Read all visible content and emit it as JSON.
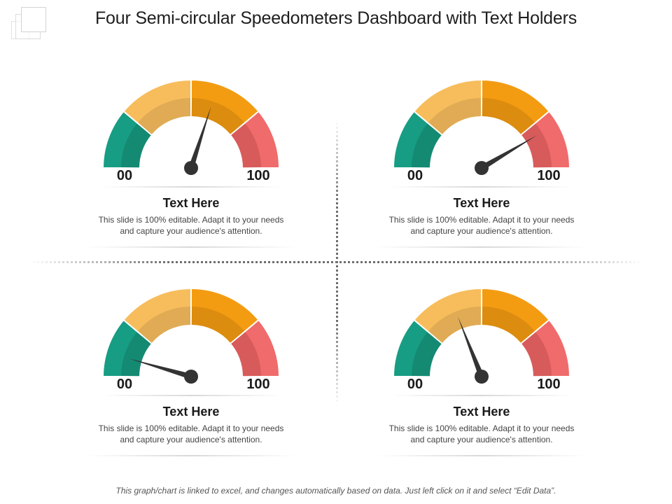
{
  "title": "Four Semi-circular Speedometers Dashboard with Text Holders",
  "footer": "This graph/chart is linked to excel, and changes automatically  based on data.  Just left click on it and select “Edit Data”.",
  "colors": {
    "teal": "#179d83",
    "teal_inner": "#148a72",
    "yellow": "#f7bd5c",
    "yellow_inner": "#e0ab54",
    "orange": "#f39c12",
    "orange_inner": "#dc8c0e",
    "red": "#f06b6b",
    "red_inner": "#d85b5b",
    "needle": "#333333"
  },
  "gauges": [
    {
      "min_label": "00",
      "max_label": "100",
      "heading": "Text Here",
      "desc_line1": "This slide is 100% editable. Adapt it to your needs",
      "desc_line2": "and capture your audience's attention.",
      "needle_value": 60
    },
    {
      "min_label": "00",
      "max_label": "100",
      "heading": "Text Here",
      "desc_line1": "This slide is 100% editable. Adapt it to your needs",
      "desc_line2": "and capture your audience's attention.",
      "needle_value": 83
    },
    {
      "min_label": "00",
      "max_label": "100",
      "heading": "Text Here",
      "desc_line1": "This slide is 100% editable. Adapt it to your needs",
      "desc_line2": "and capture your audience's attention.",
      "needle_value": 9
    },
    {
      "min_label": "00",
      "max_label": "100",
      "heading": "Text Here",
      "desc_line1": "This slide is 100% editable. Adapt it to your needs",
      "desc_line2": "and capture your audience's attention.",
      "needle_value": 38
    }
  ]
}
